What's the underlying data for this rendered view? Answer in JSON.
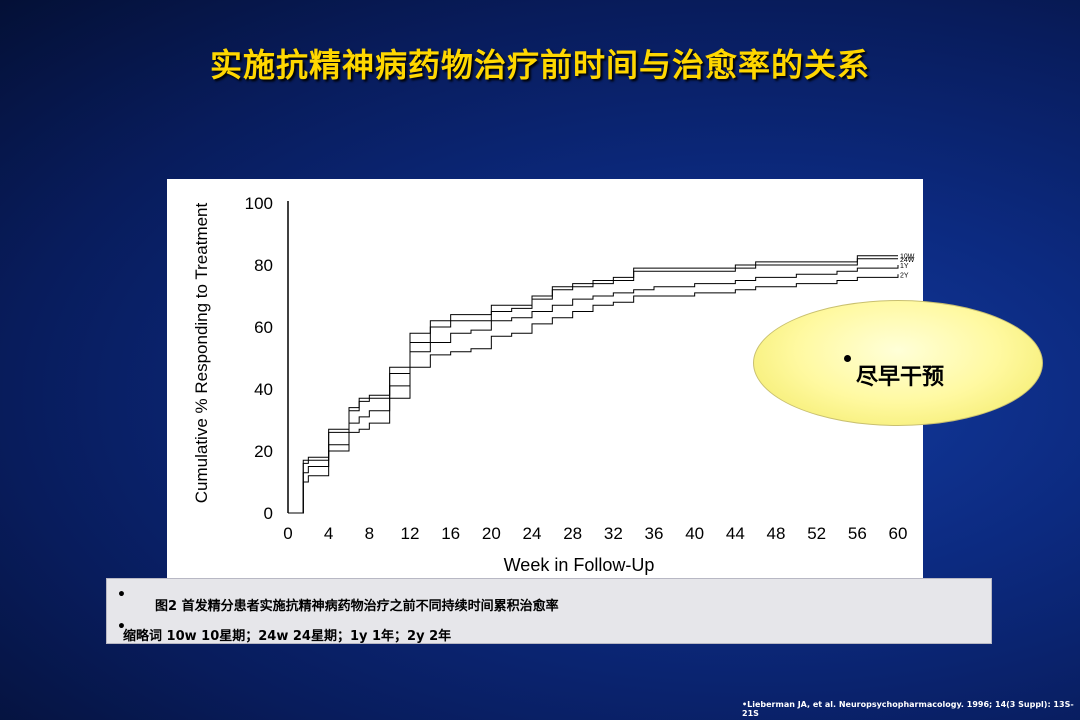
{
  "slide": {
    "title": "实施抗精神病药物治疗前时间与治愈率的关系",
    "callout": "尽早干预",
    "caption_line1": "图2  首发精分患者实施抗精神病药物治疗之前不同持续时间累积治愈率",
    "caption_line2": "缩略词   10w 10星期；24w 24星期；1y 1年；2y 2年",
    "bullet": "•",
    "citation": "Lieberman JA, et al. Neuropsychopharmacology. 1996; 14(3 Suppl): 13S-21S",
    "colors": {
      "title": "#ffd700",
      "background": "#0c2a80",
      "callout": "#fff9a0"
    }
  },
  "chart_data": {
    "type": "line",
    "xlabel": "Week in Follow-Up",
    "ylabel": "Cumulative % Responding to Treatment",
    "x_ticks": [
      "0",
      "4",
      "8",
      "12",
      "16",
      "20",
      "24",
      "28",
      "32",
      "36",
      "40",
      "44",
      "48",
      "52",
      "56",
      "60"
    ],
    "y_ticks": [
      "0",
      "20",
      "40",
      "60",
      "80",
      "100"
    ],
    "xlim": [
      0,
      60
    ],
    "ylim": [
      0,
      100
    ],
    "series": [
      {
        "name": "10W",
        "x": [
          0,
          1,
          1.5,
          2,
          4,
          6,
          7,
          8,
          10,
          12,
          14,
          16,
          18,
          20,
          22,
          24,
          26,
          28,
          30,
          32,
          34,
          36,
          40,
          44,
          46,
          50,
          54,
          56,
          60
        ],
        "y": [
          0,
          0,
          17,
          18,
          27,
          34,
          37,
          38,
          47,
          58,
          62,
          64,
          64,
          67,
          67,
          70,
          73,
          74,
          75,
          76,
          79,
          79,
          79,
          80,
          81,
          81,
          81,
          83,
          83
        ]
      },
      {
        "name": "24W",
        "x": [
          0,
          1,
          1.5,
          2,
          4,
          6,
          7,
          8,
          10,
          12,
          14,
          16,
          18,
          20,
          22,
          24,
          26,
          28,
          30,
          32,
          34,
          36,
          40,
          44,
          46,
          50,
          54,
          56,
          60
        ],
        "y": [
          0,
          0,
          16,
          17,
          26,
          33,
          36,
          37,
          45,
          55,
          60,
          62,
          62,
          65,
          66,
          69,
          72,
          73,
          74,
          75,
          78,
          78,
          78,
          79,
          80,
          80,
          80,
          82,
          82
        ]
      },
      {
        "name": "1Y",
        "x": [
          0,
          1,
          1.5,
          2,
          4,
          6,
          7,
          8,
          10,
          12,
          14,
          16,
          18,
          20,
          22,
          24,
          26,
          28,
          30,
          32,
          34,
          36,
          40,
          44,
          46,
          50,
          54,
          56,
          60
        ],
        "y": [
          0,
          0,
          13,
          15,
          22,
          29,
          31,
          33,
          41,
          52,
          55,
          58,
          59,
          62,
          63,
          65,
          67,
          69,
          70,
          71,
          72,
          73,
          74,
          75,
          76,
          77,
          78,
          79,
          80
        ]
      },
      {
        "name": "2Y",
        "x": [
          0,
          1,
          1.5,
          2,
          4,
          6,
          7,
          8,
          10,
          12,
          14,
          16,
          18,
          20,
          22,
          24,
          26,
          28,
          30,
          32,
          34,
          36,
          40,
          44,
          46,
          50,
          54,
          56,
          60
        ],
        "y": [
          0,
          0,
          10,
          12,
          20,
          26,
          27,
          29,
          37,
          47,
          51,
          52,
          53,
          57,
          58,
          61,
          63,
          65,
          67,
          68,
          70,
          70,
          71,
          72,
          73,
          74,
          75,
          76,
          77
        ]
      }
    ]
  }
}
